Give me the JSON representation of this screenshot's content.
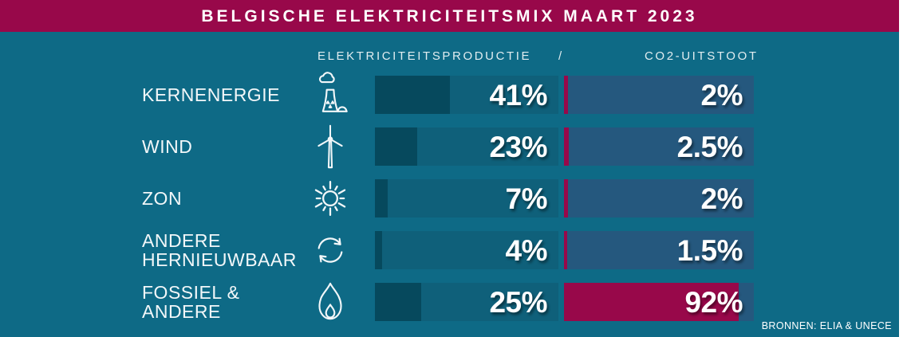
{
  "header": {
    "title": "BELGISCHE ELEKTRICITEITSMIX MAART 2023"
  },
  "columns": {
    "left": "ELEKTRICITEITSPRODUCTIE",
    "separator": "/",
    "right": "CO2-UITSTOOT"
  },
  "footer": {
    "sources": "BRONNEN: ELIA & UNECE"
  },
  "colors": {
    "background": "#0E6A86",
    "header_bg": "#98084A",
    "production_track": "#0F607A",
    "production_fill": "#06495D",
    "co2_track": "#25587E",
    "co2_fill": "#98084A",
    "text": "#FFFFFF"
  },
  "rows": [
    {
      "label": "KERNENERGIE",
      "icon": "nuclear-plant-icon",
      "production_pct": 41,
      "production_label": "41%",
      "co2_pct": 2,
      "co2_label": "2%"
    },
    {
      "label": "WIND",
      "icon": "wind-turbine-icon",
      "production_pct": 23,
      "production_label": "23%",
      "co2_pct": 2.5,
      "co2_label": "2.5%"
    },
    {
      "label": "ZON",
      "icon": "sun-icon",
      "production_pct": 7,
      "production_label": "7%",
      "co2_pct": 2,
      "co2_label": "2%"
    },
    {
      "label": "ANDERE\nHERNIEUWBAAR",
      "icon": "renewable-cycle-icon",
      "production_pct": 4,
      "production_label": "4%",
      "co2_pct": 1.5,
      "co2_label": "1.5%"
    },
    {
      "label": "FOSSIEL &\nANDERE",
      "icon": "flame-icon",
      "production_pct": 25,
      "production_label": "25%",
      "co2_pct": 92,
      "co2_label": "92%"
    }
  ],
  "chart_data": {
    "type": "bar",
    "orientation": "horizontal",
    "title": "BELGISCHE ELEKTRICITEITSMIX MAART 2023",
    "categories": [
      "KERNENERGIE",
      "WIND",
      "ZON",
      "ANDERE HERNIEUWBAAR",
      "FOSSIEL & ANDERE"
    ],
    "series": [
      {
        "name": "ELEKTRICITEITSPRODUCTIE",
        "unit": "%",
        "values": [
          41,
          23,
          7,
          4,
          25
        ],
        "fill_color": "#06495D",
        "track_color": "#0F607A"
      },
      {
        "name": "CO2-UITSTOOT",
        "unit": "%",
        "values": [
          2,
          2.5,
          2,
          1.5,
          92
        ],
        "fill_color": "#98084A",
        "track_color": "#25587E"
      }
    ],
    "xlim": [
      0,
      100
    ],
    "value_labels_shown": true,
    "legend_position": "top",
    "grid": false,
    "sources": "BRONNEN: ELIA & UNECE"
  }
}
